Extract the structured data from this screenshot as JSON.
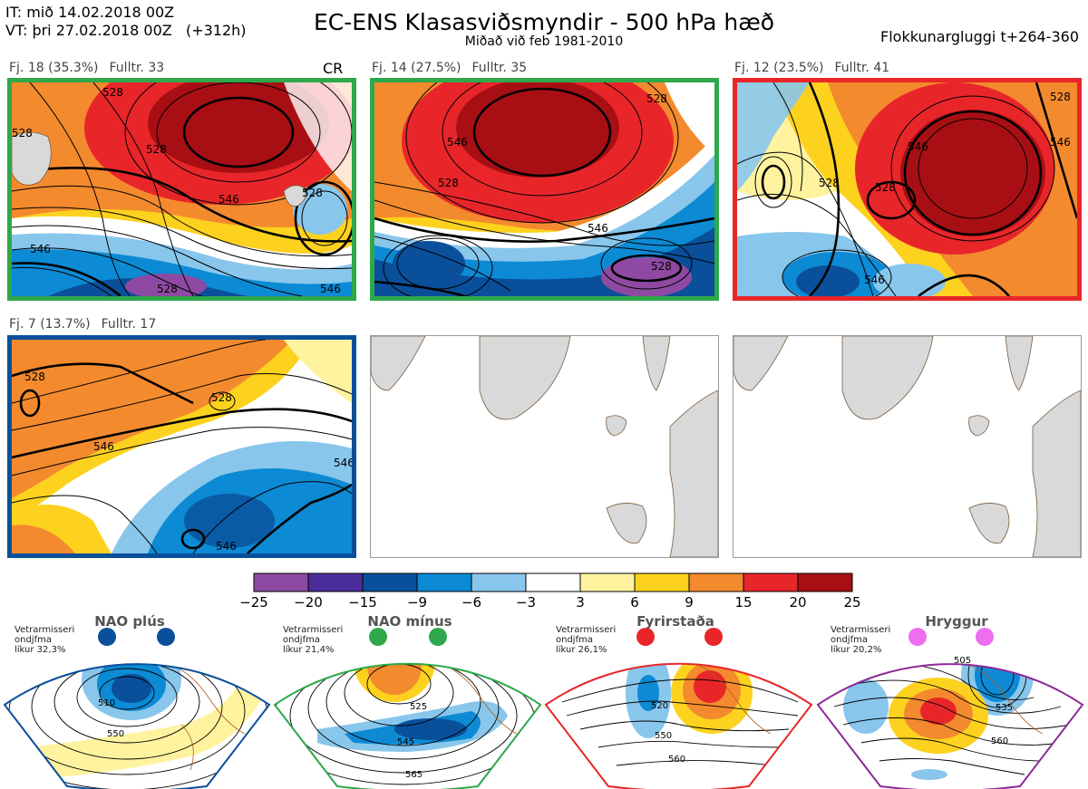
{
  "header": {
    "it_line": "IT: mið 14.02.2018 00Z",
    "vt_line": "VT: þri 27.02.2018 00Z   (+312h)",
    "title": "EC-ENS Klasasviðsmyndir - 500 hPa hæð",
    "subtitle": "Miðað við feb 1981-2010",
    "window": "Flokkunargluggi t+264-360"
  },
  "cr_label": "CR",
  "panels": [
    {
      "count": "Fj. 18 (35.3%)",
      "rep": "Fulltr. 33",
      "border": "#2ea84a"
    },
    {
      "count": "Fj. 14 (27.5%)",
      "rep": "Fulltr. 35",
      "border": "#2ea84a"
    },
    {
      "count": "Fj. 12 (23.5%)",
      "rep": "Fulltr. 41",
      "border": "#e8262a"
    },
    {
      "count": "Fj. 7 (13.7%)",
      "rep": "Fulltr. 17",
      "border": "#0a4f9a"
    }
  ],
  "contour_labels": {
    "p1": [
      "528",
      "546",
      "528",
      "546",
      "528",
      "528",
      "546",
      "528"
    ],
    "p2": [
      "546",
      "528",
      "546",
      "528",
      "528"
    ],
    "p3": [
      "546",
      "528",
      "528",
      "546",
      "546",
      "528"
    ],
    "p4": [
      "528",
      "528",
      "546",
      "546",
      "546"
    ]
  },
  "colorbar": {
    "ticks": [
      "−25",
      "−20",
      "−15",
      "−9",
      "−6",
      "−3",
      "3",
      "6",
      "9",
      "15",
      "20",
      "25"
    ],
    "colors": [
      "#8e4aa2",
      "#4b2d99",
      "#0a4f9a",
      "#0c8ad4",
      "#88c6ec",
      "#ffffff",
      "#fff3a0",
      "#fcd21f",
      "#f48a2e",
      "#e8262a",
      "#a80f14"
    ]
  },
  "regimes": [
    {
      "name": "NAO plús",
      "note": [
        "Vetrarmisseri",
        "ondjfma",
        "líkur 32,3%"
      ],
      "color": "#0a4f9a",
      "dot": "#0a4f9a",
      "labels": [
        "510",
        "550"
      ]
    },
    {
      "name": "NAO mínus",
      "note": [
        "Vetrarmisseri",
        "ondjfma",
        "líkur 21,4%"
      ],
      "color": "#2ea84a",
      "dot": "#2ea84a",
      "labels": [
        "525",
        "545",
        "565"
      ]
    },
    {
      "name": "Fyrirstaða",
      "note": [
        "Vetrarmisseri",
        "ondjfma",
        "líkur 26,1%"
      ],
      "color": "#e8262a",
      "dot": "#e8262a",
      "labels": [
        "520",
        "550",
        "560"
      ]
    },
    {
      "name": "Hryggur",
      "note": [
        "Vetrarmisseri",
        "ondjfma",
        "líkur 20,2%"
      ],
      "color": "#8d2a97",
      "dot": "#ef6ef0",
      "labels": [
        "505",
        "535",
        "560"
      ]
    }
  ]
}
